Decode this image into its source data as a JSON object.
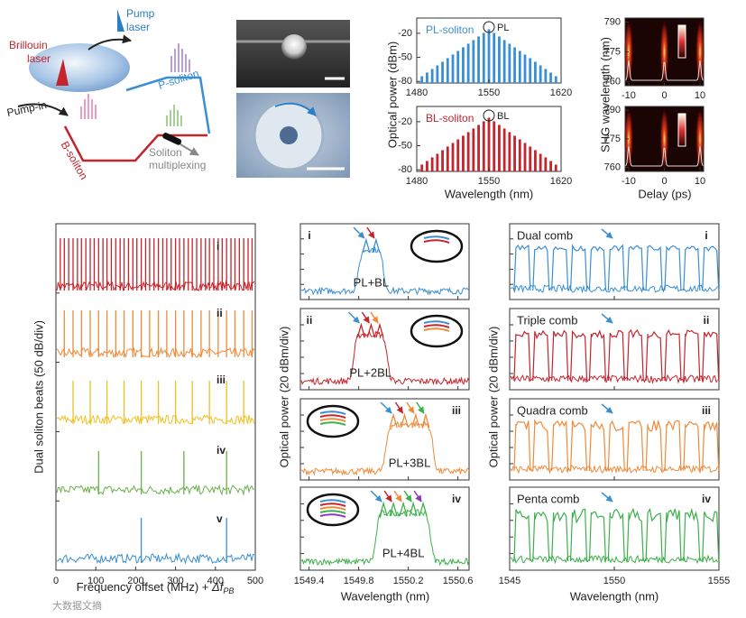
{
  "schematic": {
    "pump_laser": [
      "Pump",
      "laser"
    ],
    "brillouin_laser": [
      "Brillouin",
      "laser"
    ],
    "pump_in": "Pump-in",
    "p_soliton": "P-soliton",
    "b_soliton": "B-soliton",
    "multiplexing": [
      "Soliton",
      "multiplexing"
    ]
  },
  "watermark": "大数据文摘",
  "chart_data": [
    {
      "type": "bar",
      "label": "PL-soliton",
      "annotation": "PL",
      "color": "#3a8fd2",
      "ylabel": "Optical power (dBm)",
      "x": [
        1485,
        1490,
        1495,
        1500,
        1505,
        1510,
        1515,
        1520,
        1525,
        1530,
        1535,
        1540,
        1545,
        1550,
        1555,
        1560,
        1565,
        1570,
        1575,
        1580,
        1585,
        1590,
        1595,
        1600,
        1605,
        1610,
        1615
      ],
      "values": [
        -73.5,
        -69,
        -64.5,
        -60,
        -55.5,
        -51,
        -46.5,
        -42,
        -37.5,
        -33,
        -28.5,
        -24,
        -19.5,
        -15,
        -19.5,
        -24,
        -28.5,
        -33,
        -37.5,
        -42,
        -46.5,
        -51,
        -55.5,
        -60,
        -64.5,
        -69,
        -73.5
      ],
      "xlim": [
        1480,
        1620
      ],
      "xticks": [
        1480,
        1550,
        1620
      ],
      "ylim": [
        -82,
        -1
      ],
      "yticks": [
        -20,
        -50,
        -80
      ]
    },
    {
      "type": "bar",
      "label": "BL-soliton",
      "annotation": "BL",
      "color": "#c4242b",
      "xlabel": "Wavelength (nm)",
      "x": [
        1485,
        1490,
        1495,
        1500,
        1505,
        1510,
        1515,
        1520,
        1525,
        1530,
        1535,
        1540,
        1545,
        1550,
        1555,
        1560,
        1565,
        1570,
        1575,
        1580,
        1585,
        1590,
        1595,
        1600,
        1605,
        1610,
        1615
      ],
      "values": [
        -73.5,
        -69,
        -64.5,
        -60,
        -55.5,
        -51,
        -46.5,
        -42,
        -37.5,
        -33,
        -28.5,
        -24,
        -19.5,
        -15,
        -19.5,
        -24,
        -28.5,
        -33,
        -37.5,
        -42,
        -46.5,
        -51,
        -55.5,
        -60,
        -64.5,
        -69,
        -73.5
      ],
      "xlim": [
        1480,
        1620
      ],
      "xticks": [
        1480,
        1550,
        1620
      ],
      "ylim": [
        -82,
        -1
      ],
      "yticks": [
        -20,
        -50,
        -80
      ]
    },
    {
      "type": "heatmap",
      "ylabel": "SHG wavelength (nm)",
      "x": [
        -10,
        0,
        10
      ],
      "xlim": [
        -11,
        11
      ],
      "xticks": [
        -10,
        0,
        10
      ],
      "ylim": [
        758,
        792
      ],
      "yticks": [
        760,
        775,
        790
      ]
    },
    {
      "type": "heatmap",
      "xlabel": "Delay (ps)",
      "x": [
        -10,
        0,
        10
      ],
      "xlim": [
        -11,
        11
      ],
      "xticks": [
        -10,
        0,
        10
      ],
      "ylim": [
        758,
        792
      ],
      "yticks": [
        760,
        775,
        790
      ]
    },
    {
      "type": "stem",
      "ylabel": "Dual soliton beats (50 dB/div)",
      "xlabel": "Frequency offset (MHz) + ",
      "xlabel_symbol": "Δf",
      "xlabel_subscript": "PB",
      "xlim": [
        0,
        500
      ],
      "xticks": [
        0,
        100,
        200,
        300,
        400,
        500
      ],
      "series": [
        {
          "name": "i",
          "color": "#c4242b",
          "x": [
            11,
            21,
            32,
            43,
            54,
            64,
            75,
            86,
            96,
            107,
            118,
            128,
            139,
            150,
            161,
            171,
            182,
            193,
            203,
            214,
            225,
            235,
            246,
            257,
            268,
            278,
            289,
            300,
            310,
            321,
            332,
            342,
            353,
            364,
            375,
            385,
            396,
            407,
            417,
            428,
            439,
            449,
            460,
            471,
            482,
            492
          ]
        },
        {
          "name": "ii",
          "color": "#ee8a3a",
          "x": [
            21,
            43,
            64,
            86,
            107,
            128,
            150,
            171,
            193,
            214,
            235,
            257,
            278,
            300,
            321,
            342,
            364,
            385,
            407,
            428,
            449,
            471,
            492
          ]
        },
        {
          "name": "iii",
          "color": "#f0c020",
          "x": [
            43,
            86,
            128,
            171,
            214,
            257,
            300,
            342,
            385,
            428,
            471
          ]
        },
        {
          "name": "iv",
          "color": "#6ab04c",
          "x": [
            107,
            214,
            321,
            428
          ]
        },
        {
          "name": "v",
          "color": "#3a8fd2",
          "x": [
            214,
            428
          ]
        }
      ]
    },
    {
      "type": "spectrum",
      "ylabel": "Optical power (20 dBm/div)",
      "xlabel": "Wavelength (nm)",
      "xlim": [
        1549.33,
        1550.69
      ],
      "xticks": [
        1549.4,
        1549.8,
        1550.2,
        1550.6
      ],
      "series": [
        {
          "name": "i",
          "label": "PL+BL",
          "color": "#3a8fd2",
          "x": [
            1549.86,
            1549.94
          ]
        },
        {
          "name": "ii",
          "label": "PL+2BL",
          "color": "#c4242b",
          "x": [
            1549.82,
            1549.9,
            1549.97
          ]
        },
        {
          "name": "iii",
          "label": "PL+3BL",
          "color": "#ee8a3a",
          "x": [
            1550.08,
            1550.17,
            1550.26,
            1550.34
          ]
        },
        {
          "name": "iv",
          "label": "PL+4BL",
          "color": "#3cb04a",
          "x": [
            1550.0,
            1550.08,
            1550.16,
            1550.24,
            1550.32
          ]
        }
      ]
    },
    {
      "type": "pulse",
      "ylabel": "Optical power (20 dBm/div)",
      "xlabel": "Wavelength (nm)",
      "xlim": [
        1545,
        1555
      ],
      "xticks": [
        1545,
        1550,
        1555
      ],
      "series": [
        {
          "name": "i",
          "label": "Dual comb",
          "color": "#3a8fd2",
          "x": [
            1545.6,
            1546.5,
            1547.4,
            1548.3,
            1549.2,
            1550.1,
            1551.0,
            1551.9,
            1552.8,
            1553.7,
            1554.6
          ]
        },
        {
          "name": "ii",
          "label": "Triple comb",
          "color": "#c4242b",
          "x": [
            1545.6,
            1546.5,
            1547.4,
            1548.3,
            1549.2,
            1550.1,
            1551.0,
            1551.9,
            1552.8,
            1553.7,
            1554.6
          ]
        },
        {
          "name": "iii",
          "label": "Quadra comb",
          "color": "#ee8a3a",
          "x": [
            1545.6,
            1546.5,
            1547.4,
            1548.3,
            1549.2,
            1550.1,
            1551.0,
            1551.9,
            1552.8,
            1553.7,
            1554.6
          ]
        },
        {
          "name": "iv",
          "label": "Penta comb",
          "color": "#3cb04a",
          "x": [
            1545.6,
            1546.5,
            1547.4,
            1548.3,
            1549.2,
            1550.1,
            1551.0,
            1551.9,
            1552.8,
            1553.7,
            1554.6
          ]
        }
      ]
    }
  ]
}
